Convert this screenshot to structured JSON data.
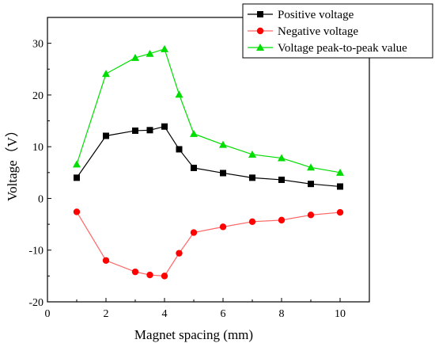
{
  "chart_data": {
    "type": "line",
    "title": "",
    "xlabel": "Magnet spacing (mm)",
    "ylabel": "Voltage（V）",
    "xlim": [
      0,
      11
    ],
    "ylim": [
      -20,
      35
    ],
    "xticks": [
      0,
      2,
      4,
      6,
      8,
      10
    ],
    "yticks": [
      -20,
      -10,
      0,
      10,
      20,
      30
    ],
    "grid": false,
    "legend_position": "top-right",
    "x": [
      1,
      2,
      3,
      3.5,
      4,
      4.5,
      5,
      6,
      7,
      8,
      9,
      10
    ],
    "series": [
      {
        "name": "Positive voltage",
        "marker": "square",
        "color": "#000000",
        "values": [
          4.0,
          12.1,
          13.1,
          13.2,
          13.9,
          9.5,
          5.9,
          4.9,
          4.0,
          3.6,
          2.8,
          2.3
        ]
      },
      {
        "name": "Negative voltage",
        "marker": "circle",
        "color": "#ff0000",
        "line_color": "#ff6666",
        "values": [
          -2.6,
          -12.0,
          -14.2,
          -14.8,
          -15.0,
          -10.6,
          -6.6,
          -5.5,
          -4.5,
          -4.2,
          -3.2,
          -2.7
        ]
      },
      {
        "name": "Voltage peak-to-peak value",
        "marker": "triangle",
        "color": "#00dd00",
        "values": [
          6.6,
          24.1,
          27.2,
          28.0,
          28.9,
          20.1,
          12.5,
          10.4,
          8.5,
          7.8,
          6.0,
          5.0
        ]
      }
    ]
  }
}
